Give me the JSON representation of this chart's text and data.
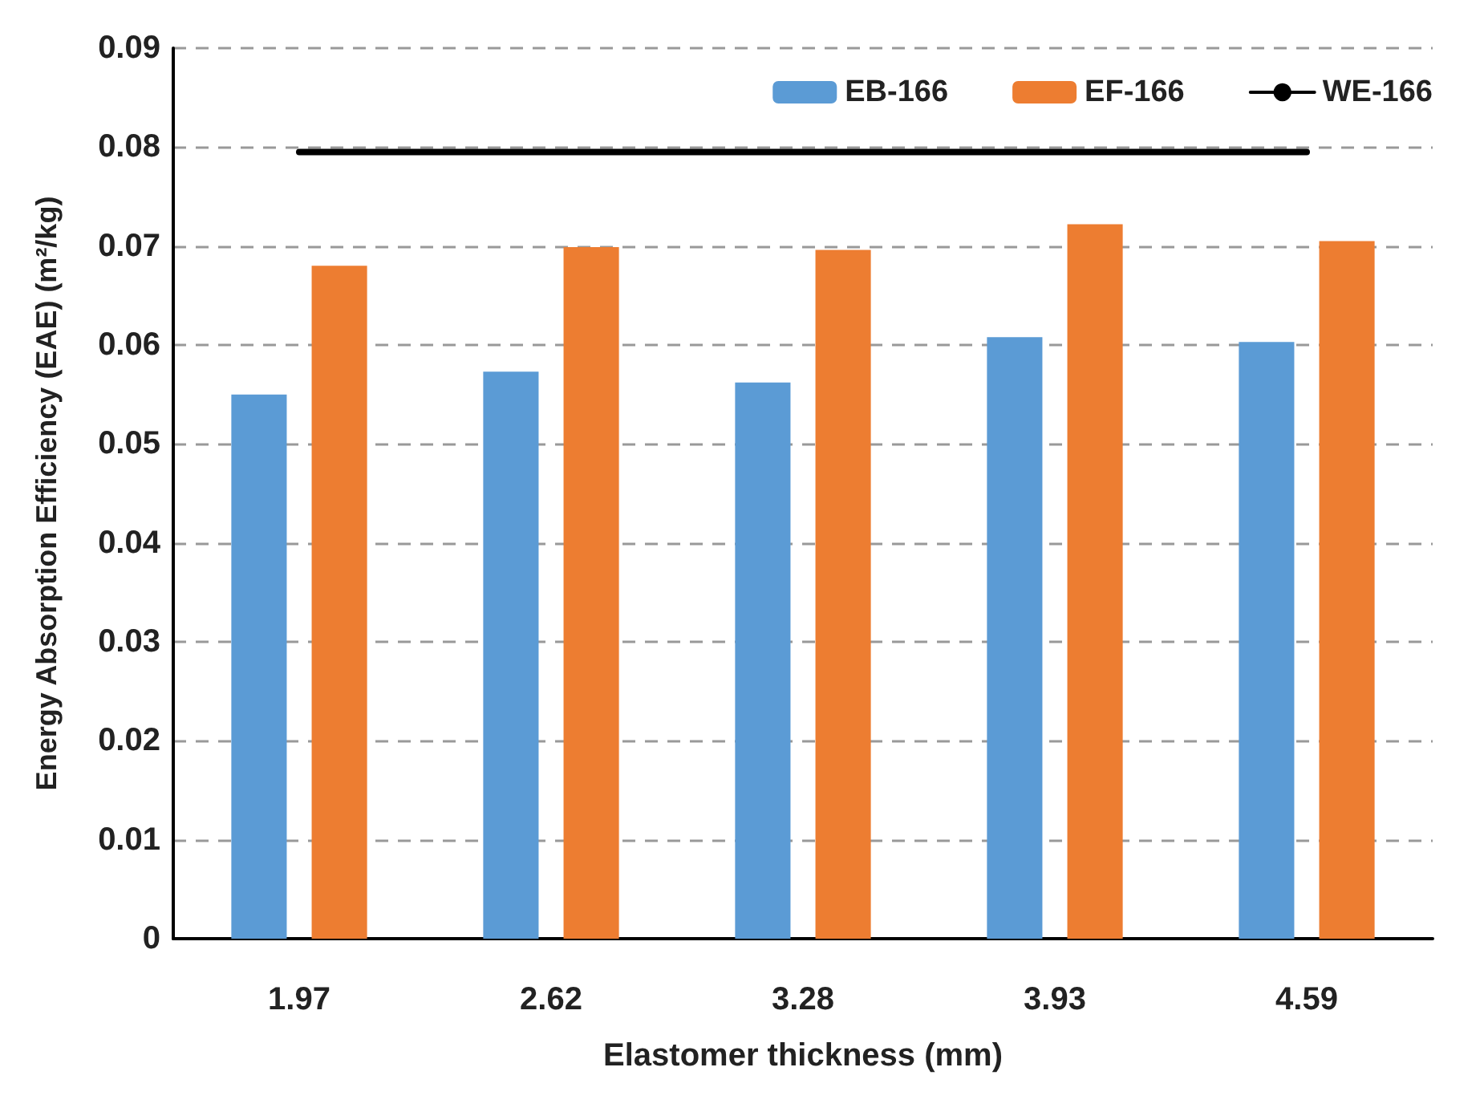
{
  "chart_data": {
    "type": "bar",
    "xlabel": "Elastomer thickness (mm)",
    "ylabel": "Energy Absorption Efficiency (EAE) (m²/kg)",
    "categories": [
      "1.97",
      "2.62",
      "3.28",
      "3.93",
      "4.59"
    ],
    "series": [
      {
        "name": "EB-166",
        "color": "#5b9bd5",
        "values": [
          0.055,
          0.0573,
          0.0562,
          0.0608,
          0.0603
        ]
      },
      {
        "name": "EF-166",
        "color": "#ed7d31",
        "values": [
          0.068,
          0.0699,
          0.0696,
          0.0722,
          0.0705
        ]
      },
      {
        "name": "WE-166",
        "type": "line",
        "color": "#000000",
        "values": [
          0.0795,
          0.0795,
          0.0795,
          0.0795,
          0.0795
        ],
        "marker": "none",
        "line_style": "solid"
      }
    ],
    "ylim": [
      0,
      0.09
    ],
    "yticks": [
      0,
      0.01,
      0.02,
      0.03,
      0.04,
      0.05,
      0.06,
      0.07,
      0.08,
      0.09
    ],
    "grid": "y",
    "legend": "top right"
  }
}
